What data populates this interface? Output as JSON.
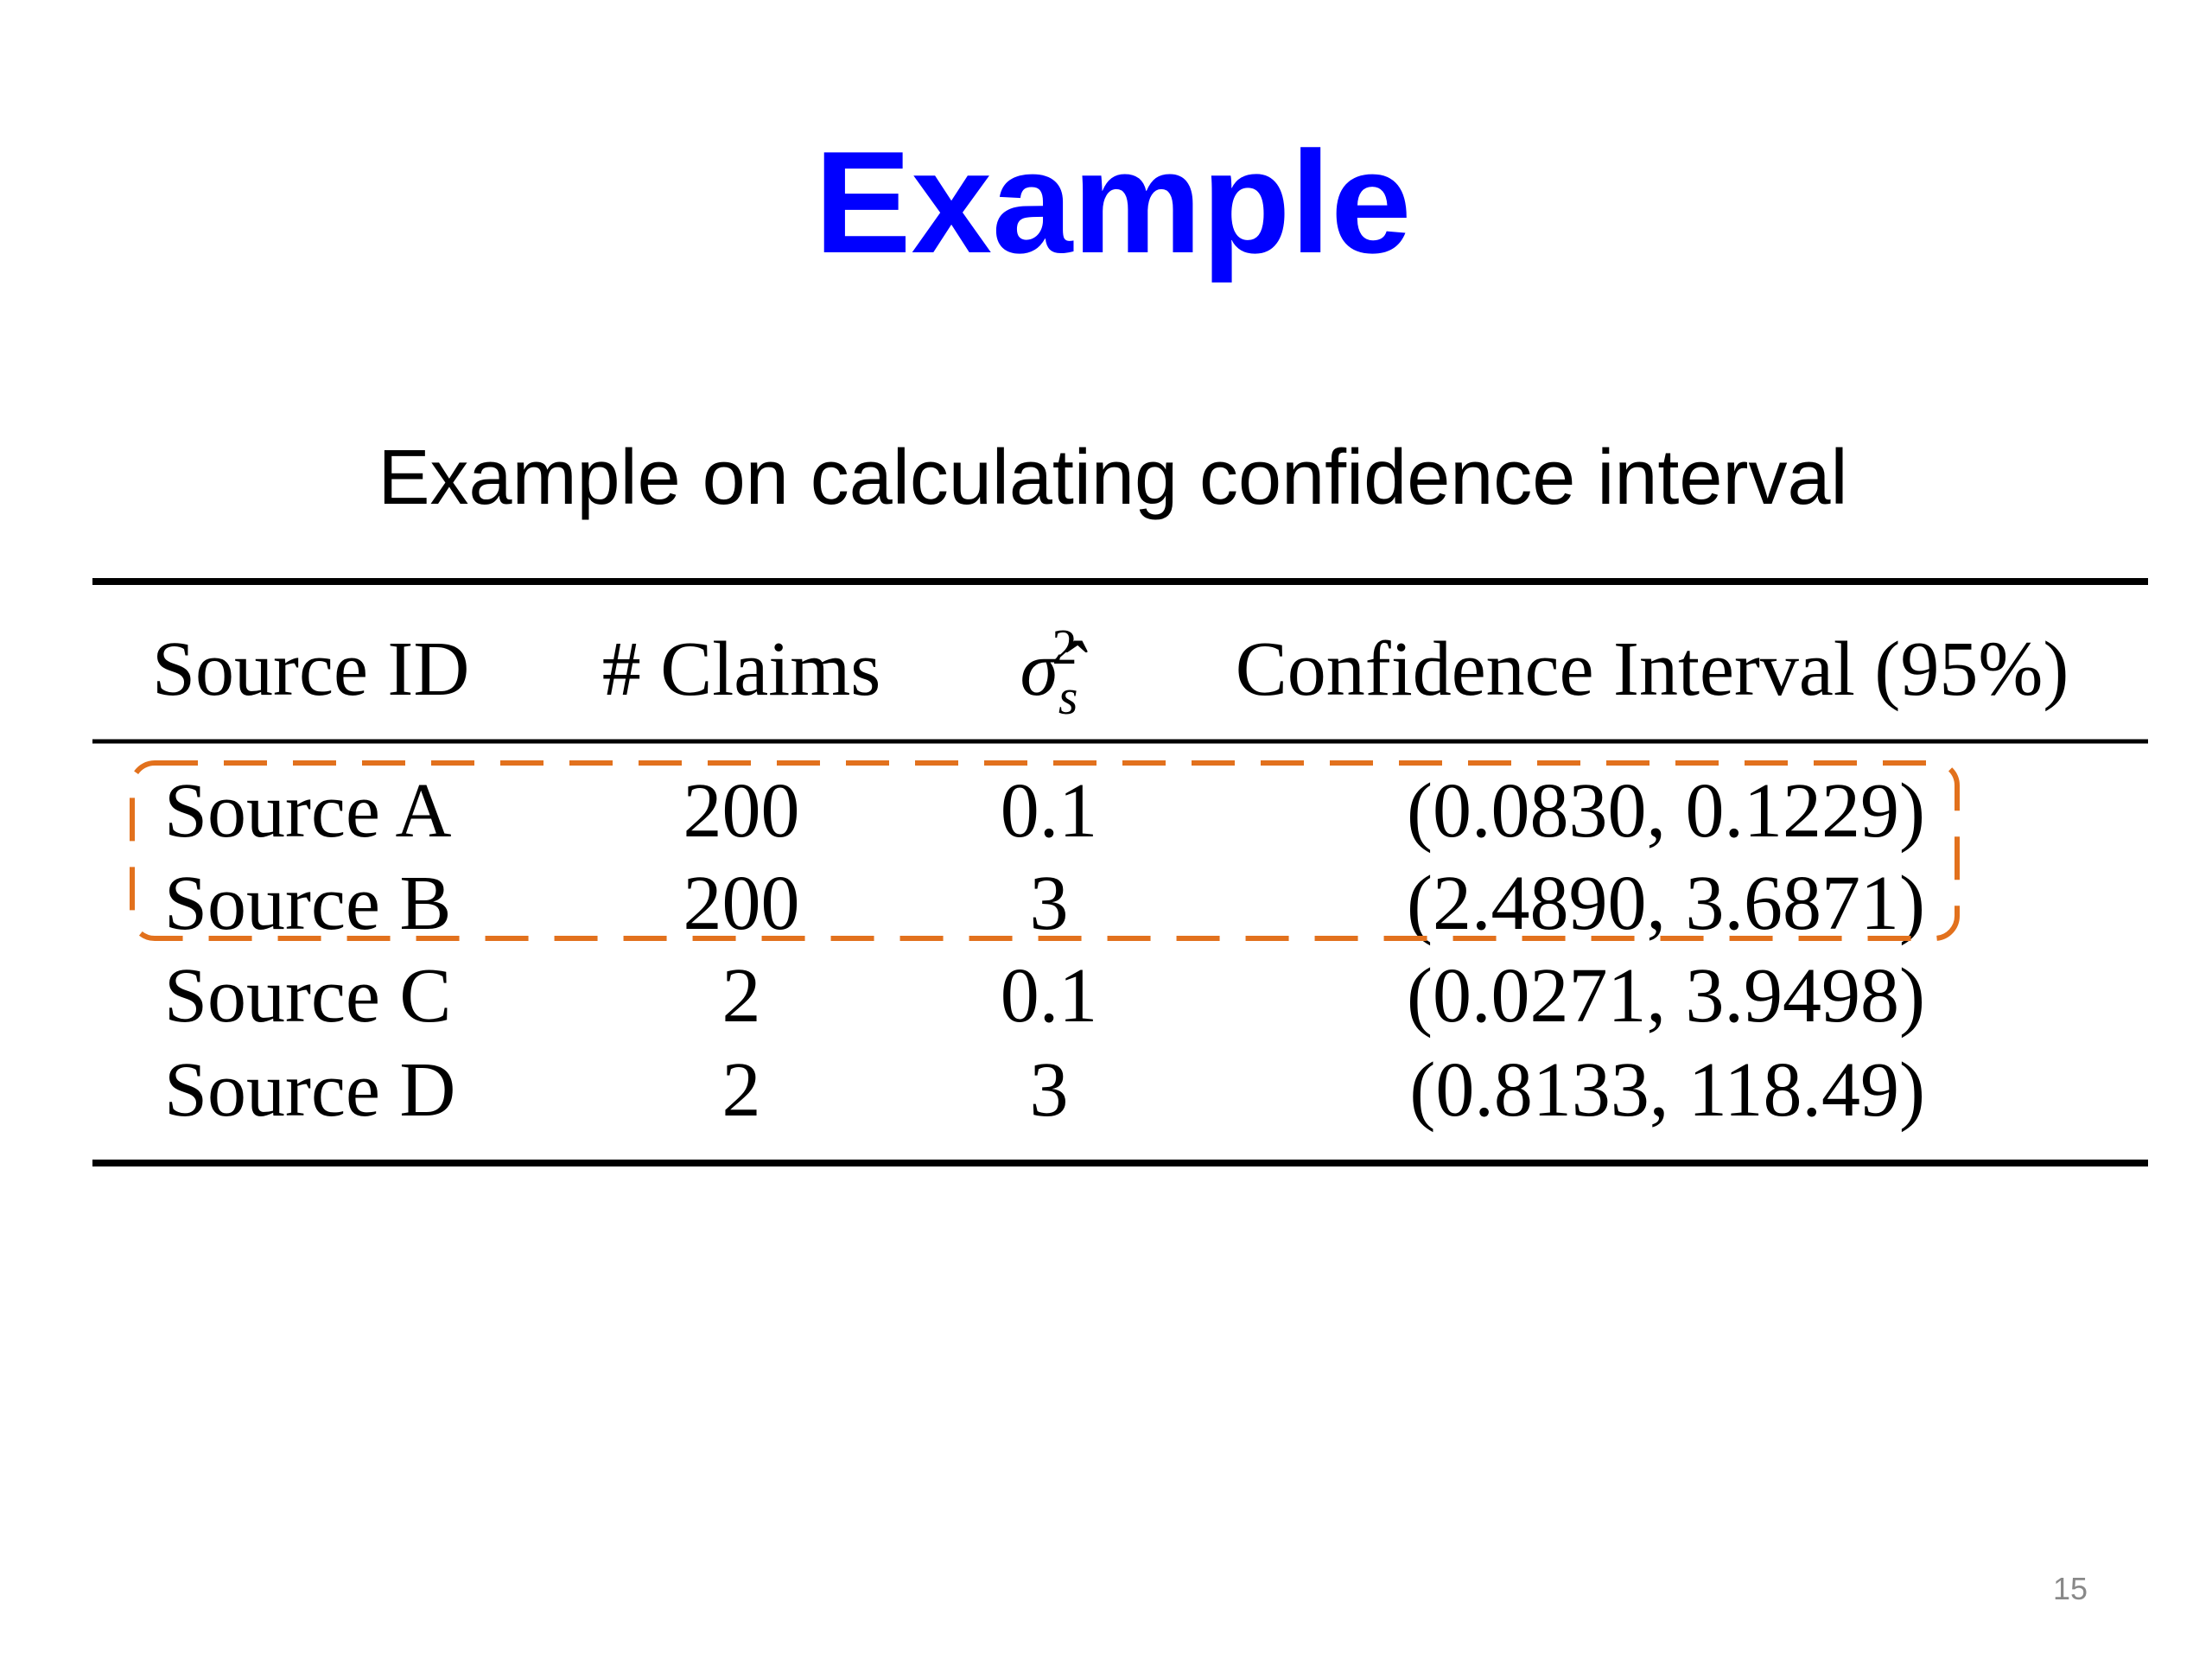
{
  "header": {
    "title": "Example",
    "subtitle": "Example on calculating confidence interval"
  },
  "table": {
    "columns": [
      "Source ID",
      "# Claims",
      {
        "symbol": "σ̂",
        "sub": "s",
        "sup": "2"
      },
      "Confidence Interval (95%)"
    ],
    "rows": [
      [
        "Source A",
        "200",
        "0.1",
        "(0.0830, 0.1229)"
      ],
      [
        "Source B",
        "200",
        "3",
        "(2.4890, 3.6871)"
      ],
      [
        "Source C",
        "2",
        "0.1",
        "(0.0271, 3.9498)"
      ],
      [
        "Source D",
        "2",
        "3",
        "(0.8133, 118.49)"
      ]
    ]
  },
  "footer": {
    "page_number": "15"
  }
}
